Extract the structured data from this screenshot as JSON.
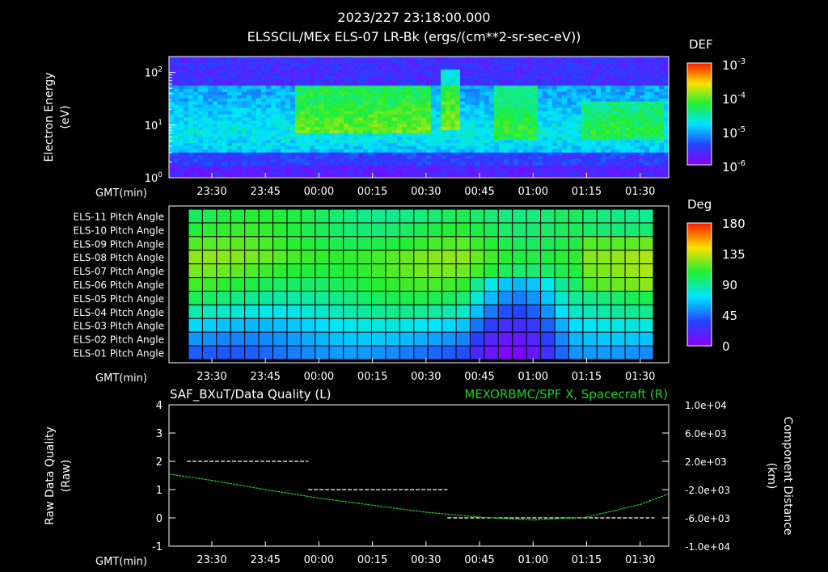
{
  "header": {
    "title": "2023/227 23:18:00.000",
    "subtitle": "ELSSCIL/MEx ELS-07 LR-Bk  (ergs/(cm**2-sr-sec-eV))"
  },
  "time_axis": {
    "label": "GMT(min)",
    "ticks": [
      "23:30",
      "23:45",
      "00:00",
      "00:15",
      "00:30",
      "00:45",
      "01:00",
      "01:15",
      "01:30"
    ]
  },
  "colors": {
    "background": "#000000",
    "foreground": "#ffffff",
    "spacecraft_line": "#22cc22"
  },
  "chart_data": [
    {
      "type": "heatmap",
      "title": "ELSSCIL/MEx ELS-07 LR-Bk  (ergs/(cm**2-sr-sec-eV))",
      "ylabel": "Electron Energy (eV)",
      "ylabel_lines": [
        "Electron Energy",
        "(eV)"
      ],
      "yscale": "log",
      "ylim": [
        1,
        200
      ],
      "ytick_labels": [
        "10^0",
        "10^1",
        "10^2"
      ],
      "colorbar": {
        "label": "DEF",
        "scale": "log",
        "range": [
          1e-06,
          0.001
        ],
        "tick_labels": [
          "10^-3",
          "10^-4",
          "10^-5",
          "10^-6"
        ]
      },
      "features": [
        {
          "time": "23:55-00:30",
          "energy_range_eV": [
            7,
            60
          ],
          "level": "high"
        },
        {
          "time": "00:35",
          "energy_range_eV": [
            8,
            110
          ],
          "level": "spike"
        },
        {
          "time": "00:50-01:00",
          "energy_range_eV": [
            5,
            60
          ],
          "level": "v-shape"
        },
        {
          "time": "01:15-01:35",
          "energy_range_eV": [
            5,
            30
          ],
          "level": "elevated"
        }
      ]
    },
    {
      "type": "heatmap",
      "title": "",
      "row_labels": [
        "ELS-11 Pitch Angle",
        "ELS-10 Pitch Angle",
        "ELS-09 Pitch Angle",
        "ELS-08 Pitch Angle",
        "ELS-07 Pitch Angle",
        "ELS-06 Pitch Angle",
        "ELS-05 Pitch Angle",
        "ELS-04 Pitch Angle",
        "ELS-03 Pitch Angle",
        "ELS-02 Pitch Angle",
        "ELS-01 Pitch Angle"
      ],
      "colorbar": {
        "label": "Deg",
        "range": [
          0,
          180
        ],
        "tick_labels": [
          "180",
          "135",
          "90",
          "45",
          "0"
        ]
      },
      "row_baseline_deg": [
        100,
        104,
        110,
        118,
        114,
        106,
        96,
        84,
        70,
        58,
        48
      ],
      "dip_window": {
        "time": "00:40-01:10",
        "depth_deg": 40
      },
      "grid": true
    },
    {
      "type": "line",
      "title_left": "SAF_BXuT/Data Quality (L)",
      "title_right": "MEXORBMC/SPF X, Spacecraft (R)",
      "ylabel_left": [
        "Raw Data Quality",
        "(Raw)"
      ],
      "ylabel_right": [
        "Component Distance",
        "(km)"
      ],
      "ylim_left": [
        -1,
        4
      ],
      "ytick_left": [
        "-1",
        "0",
        "1",
        "2",
        "3",
        "4"
      ],
      "ylim_right": [
        -10000,
        10000
      ],
      "ytick_right": [
        "1.0e+04",
        "6.0e+03",
        "2.0e+03",
        "-2.0e+03",
        "-6.0e+03",
        "-1.0e+04"
      ],
      "series": [
        {
          "name": "SAF_BXuT/Data Quality",
          "axis": "left",
          "segments": [
            {
              "start": "23:23",
              "end": "23:57",
              "value": 2
            },
            {
              "start": "23:57",
              "end": "00:36",
              "value": 1
            },
            {
              "start": "00:36",
              "end": "01:34",
              "value": 0
            }
          ]
        },
        {
          "name": "MEXORBMC/SPF X, Spacecraft",
          "axis": "right",
          "x": [
            "23:18",
            "23:30",
            "23:45",
            "00:00",
            "00:15",
            "00:30",
            "00:45",
            "01:00",
            "01:15",
            "01:30",
            "01:38"
          ],
          "y": [
            200,
            -700,
            -2000,
            -3200,
            -4200,
            -5200,
            -5900,
            -6300,
            -5900,
            -4100,
            -2600
          ]
        }
      ]
    }
  ]
}
